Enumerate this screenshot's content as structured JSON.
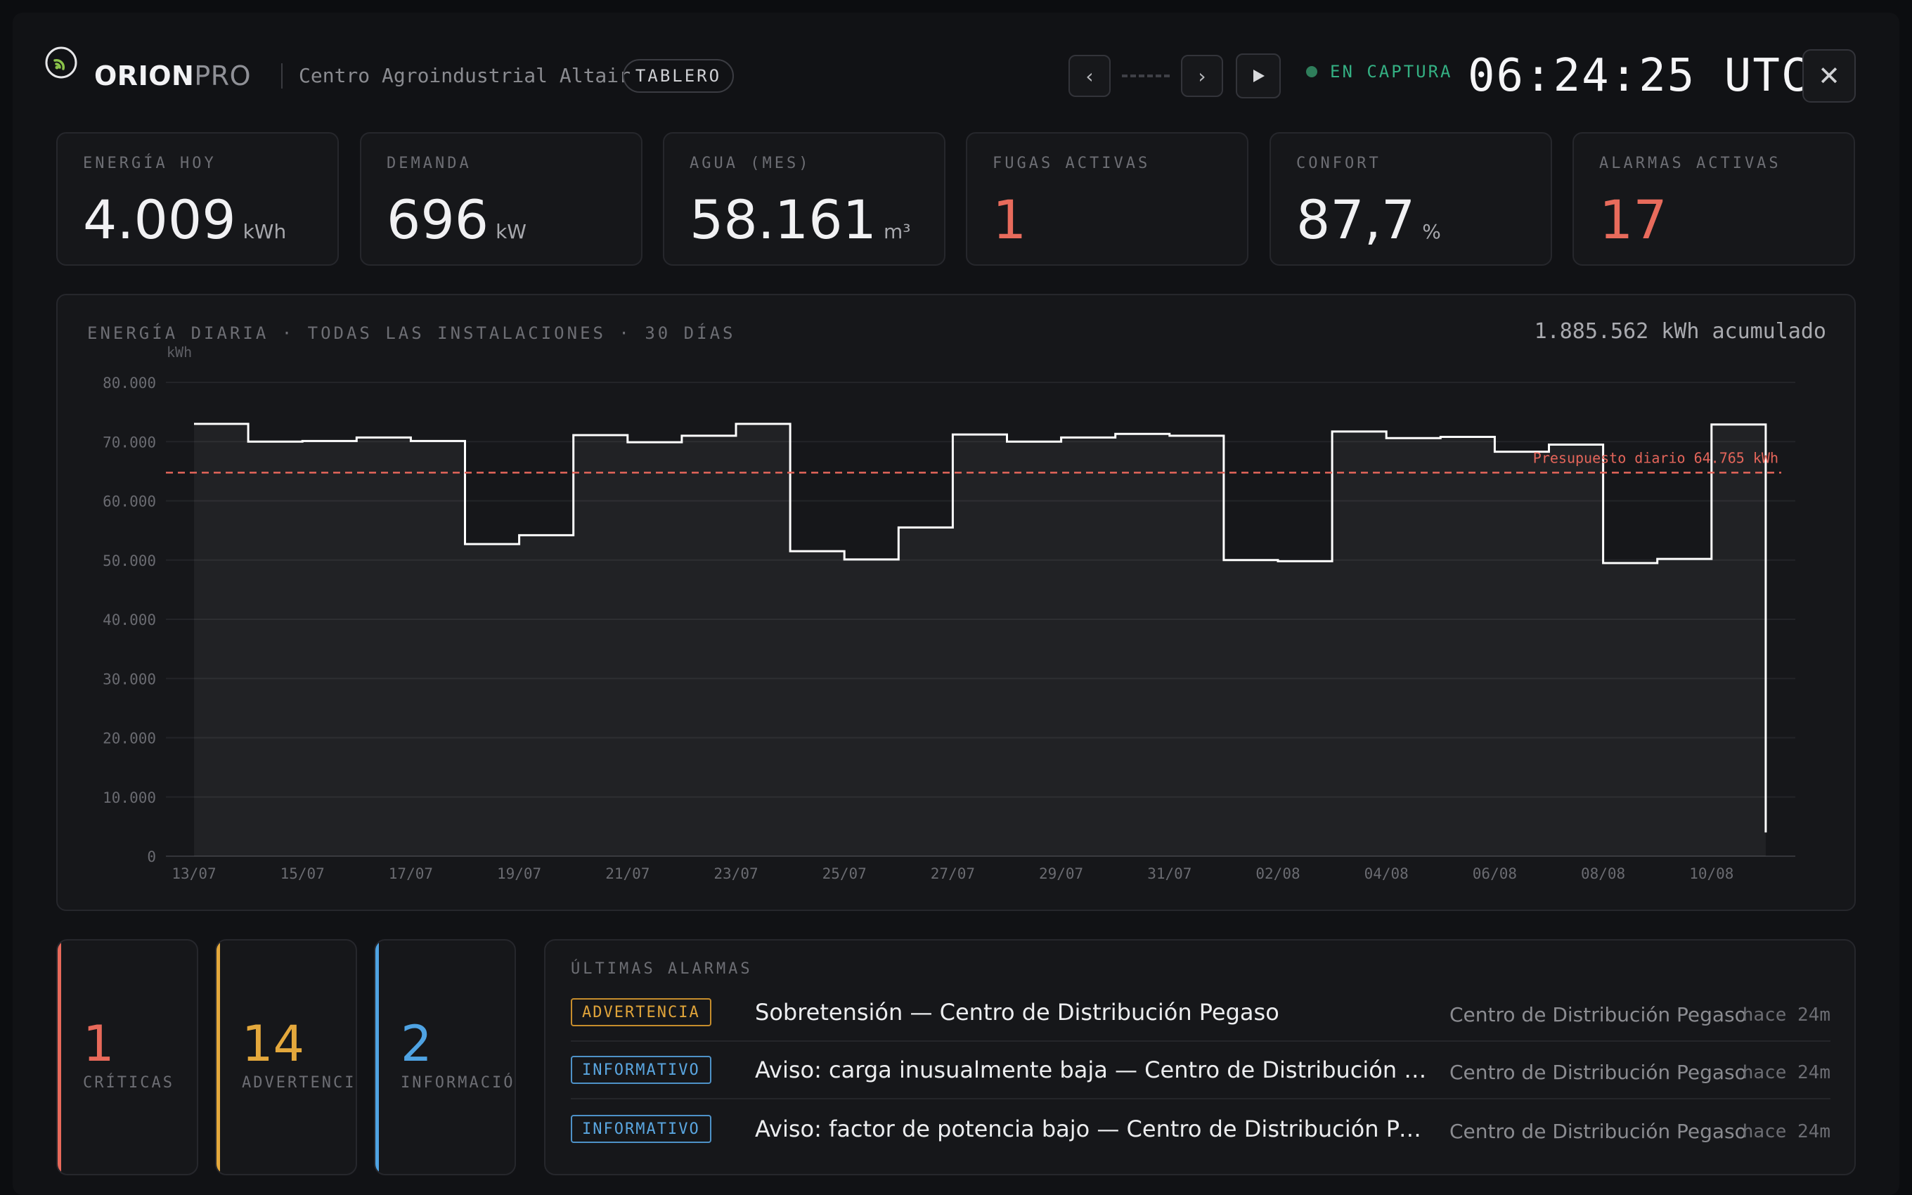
{
  "header": {
    "brand_strong": "ORION",
    "brand_light": "PRO",
    "site_name": "Centro Agroindustrial Altair",
    "mode_tag": "TABLERO",
    "status": "EN CAPTURA",
    "clock": "06:24:25 UTC",
    "icons": {
      "prev": "chevron-left-icon",
      "next": "chevron-right-icon",
      "play": "play-icon",
      "close": "close-icon"
    }
  },
  "kpis": [
    {
      "label": "ENERGÍA HOY",
      "value": "4.009",
      "unit": "kWh"
    },
    {
      "label": "DEMANDA",
      "value": "696",
      "unit": "kW"
    },
    {
      "label": "AGUA (MES)",
      "value": "58.161",
      "unit": "m³"
    },
    {
      "label": "FUGAS ACTIVAS",
      "value": "1",
      "unit": ""
    },
    {
      "label": "CONFORT",
      "value": "87,7",
      "unit": "%"
    },
    {
      "label": "ALARMAS ACTIVAS",
      "value": "17",
      "unit": ""
    }
  ],
  "chart_panel": {
    "title": "ENERGÍA DIARIA · TODAS LAS INSTALACIONES · 30 DÍAS",
    "total": "1.885.562 kWh acumulado"
  },
  "chart_data": {
    "type": "area",
    "step": true,
    "ylabel": "kWh",
    "ylim": [
      0,
      80000
    ],
    "y_ticks": [
      "0",
      "10.000",
      "20.000",
      "30.000",
      "40.000",
      "50.000",
      "60.000",
      "70.000",
      "80.000"
    ],
    "x_tick_labels": [
      "13/07",
      "15/07",
      "17/07",
      "19/07",
      "21/07",
      "23/07",
      "25/07",
      "27/07",
      "29/07",
      "31/07",
      "02/08",
      "04/08",
      "06/08",
      "08/08",
      "10/08"
    ],
    "x": [
      "13/07",
      "14/07",
      "15/07",
      "16/07",
      "17/07",
      "18/07",
      "19/07",
      "20/07",
      "21/07",
      "22/07",
      "23/07",
      "24/07",
      "25/07",
      "26/07",
      "27/07",
      "28/07",
      "29/07",
      "30/07",
      "31/07",
      "01/08",
      "02/08",
      "03/08",
      "04/08",
      "05/08",
      "06/08",
      "07/08",
      "08/08",
      "09/08",
      "10/08",
      "11/08"
    ],
    "values": [
      73000,
      70000,
      70100,
      70700,
      70100,
      52700,
      54200,
      71100,
      69900,
      71000,
      73000,
      51500,
      50100,
      55500,
      71200,
      70000,
      70700,
      71300,
      71000,
      50000,
      49800,
      71700,
      70600,
      70800,
      68300,
      69500,
      49500,
      50200,
      72900,
      4000
    ],
    "budget": {
      "label": "Presupuesto diario",
      "value_label": "64.765 kWh",
      "value": 64765
    },
    "grid": true,
    "colors": {
      "line": "#ffffff",
      "budget": "#e4655a"
    }
  },
  "counters": [
    {
      "value": "1",
      "label": "CRÍTICAS",
      "color": "#e8695a"
    },
    {
      "value": "14",
      "label": "ADVERTENCIAS",
      "color": "#e4a83c"
    },
    {
      "value": "2",
      "label": "INFORMACIÓN",
      "color": "#4fa3e3"
    }
  ],
  "alarms": {
    "title": "ÚLTIMAS ALARMAS",
    "rows": [
      {
        "level": "ADVERTENCIA",
        "title": "Sobretensión — Centro de Distribución Pegaso",
        "site": "Centro de Distribución Pegaso",
        "time": "hace 24m"
      },
      {
        "level": "INFORMATIVO",
        "title": "Aviso: carga inusualmente baja — Centro de Distribución Pegaso",
        "site": "Centro de Distribución Pegaso",
        "time": "hace 24m"
      },
      {
        "level": "INFORMATIVO",
        "title": "Aviso: factor de potencia bajo — Centro de Distribución Pegaso",
        "site": "Centro de Distribución Pegaso",
        "time": "hace 24m"
      }
    ]
  }
}
